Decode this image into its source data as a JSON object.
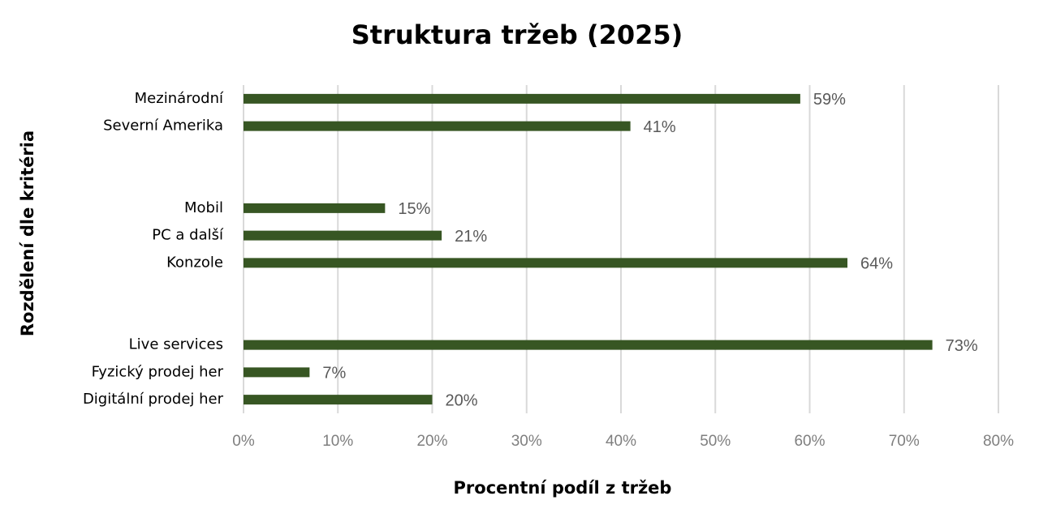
{
  "chart_data": {
    "type": "bar",
    "orientation": "horizontal",
    "title": "Struktura tržeb (2025)",
    "x_label": "Procentní podíl z tržeb",
    "y_label": "Rozdělení dle kritéria",
    "categories": [
      "Mezinárodní",
      "Severní Amerika",
      null,
      null,
      "Mobil",
      "PC a další",
      "Konzole",
      null,
      null,
      "Live services",
      "Fyzický prodej her",
      "Digitální prodej her"
    ],
    "values": [
      59,
      41,
      null,
      null,
      15,
      21,
      64,
      null,
      null,
      73,
      7,
      20
    ],
    "value_labels": [
      "59%",
      "41%",
      null,
      null,
      "15%",
      "21%",
      "64%",
      null,
      null,
      "73%",
      "7%",
      "20%"
    ],
    "color": "#375623",
    "xlim": [
      0,
      80
    ],
    "xticks": [
      {
        "value": 0,
        "label": "0%"
      },
      {
        "value": 10,
        "label": "10%"
      },
      {
        "value": 20,
        "label": "20%"
      },
      {
        "value": 30,
        "label": "30%"
      },
      {
        "value": 40,
        "label": "40%"
      },
      {
        "value": 50,
        "label": "50%"
      },
      {
        "value": 60,
        "label": "60%"
      },
      {
        "value": 70,
        "label": "70%"
      },
      {
        "value": 80,
        "label": "80%"
      }
    ],
    "grid": true
  }
}
